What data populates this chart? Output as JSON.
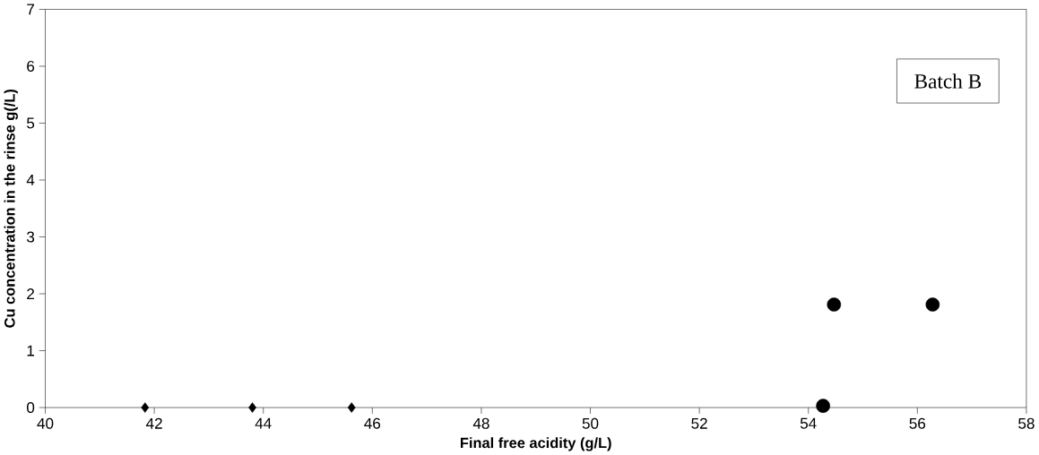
{
  "chart_data": {
    "type": "scatter",
    "xlabel": "Final free acidity (g/L)",
    "ylabel": "Cu concentration in the rinse g(/L)",
    "annotations": [
      "Batch B"
    ],
    "series": [
      {
        "color": "#000000",
        "marker": "diamond",
        "x": [
          41.83,
          43.8,
          45.62
        ],
        "values": [
          0,
          0,
          0
        ]
      },
      {
        "color": "#000000",
        "marker": "circle",
        "x": [
          54.27,
          54.47,
          56.28
        ],
        "values": [
          0.03,
          1.81,
          1.81
        ]
      }
    ],
    "xlim": [
      40,
      58
    ],
    "xticks": [
      40,
      42,
      44,
      46,
      48,
      50,
      52,
      54,
      56,
      58
    ],
    "ylim": [
      0,
      7
    ],
    "yticks": [
      0,
      1,
      2,
      3,
      4,
      5,
      6,
      7
    ],
    "grid": false
  }
}
